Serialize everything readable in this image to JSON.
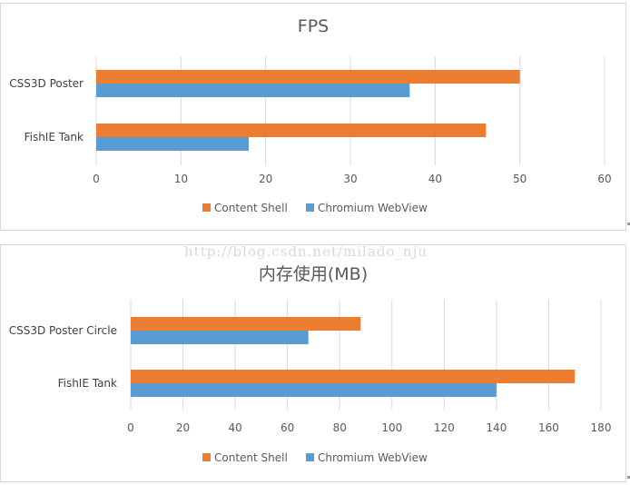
{
  "watermark": "http://blog.csdn.net/milado_nju",
  "chart_data": [
    {
      "type": "bar",
      "orientation": "horizontal",
      "title": "FPS",
      "categories": [
        "CSS3D Poster",
        "FishIE Tank"
      ],
      "series": [
        {
          "name": "Content Shell",
          "color": "#ed7d31",
          "values": [
            50,
            46
          ]
        },
        {
          "name": "Chromium WebView",
          "color": "#5b9bd5",
          "values": [
            37,
            18
          ]
        }
      ],
      "xlim": [
        0,
        60
      ],
      "xticks": [
        0,
        10,
        20,
        30,
        40,
        50,
        60
      ],
      "grid": "vertical",
      "legend": "bottom"
    },
    {
      "type": "bar",
      "orientation": "horizontal",
      "title": "内存使用(MB)",
      "categories": [
        "CSS3D Poster Circle",
        "FishIE Tank"
      ],
      "series": [
        {
          "name": "Content Shell",
          "color": "#ed7d31",
          "values": [
            88,
            170
          ]
        },
        {
          "name": "Chromium WebView",
          "color": "#5b9bd5",
          "values": [
            68,
            140
          ]
        }
      ],
      "xlim": [
        0,
        180
      ],
      "xticks": [
        0,
        20,
        40,
        60,
        80,
        100,
        120,
        140,
        160,
        180
      ],
      "grid": "vertical",
      "legend": "bottom"
    }
  ]
}
